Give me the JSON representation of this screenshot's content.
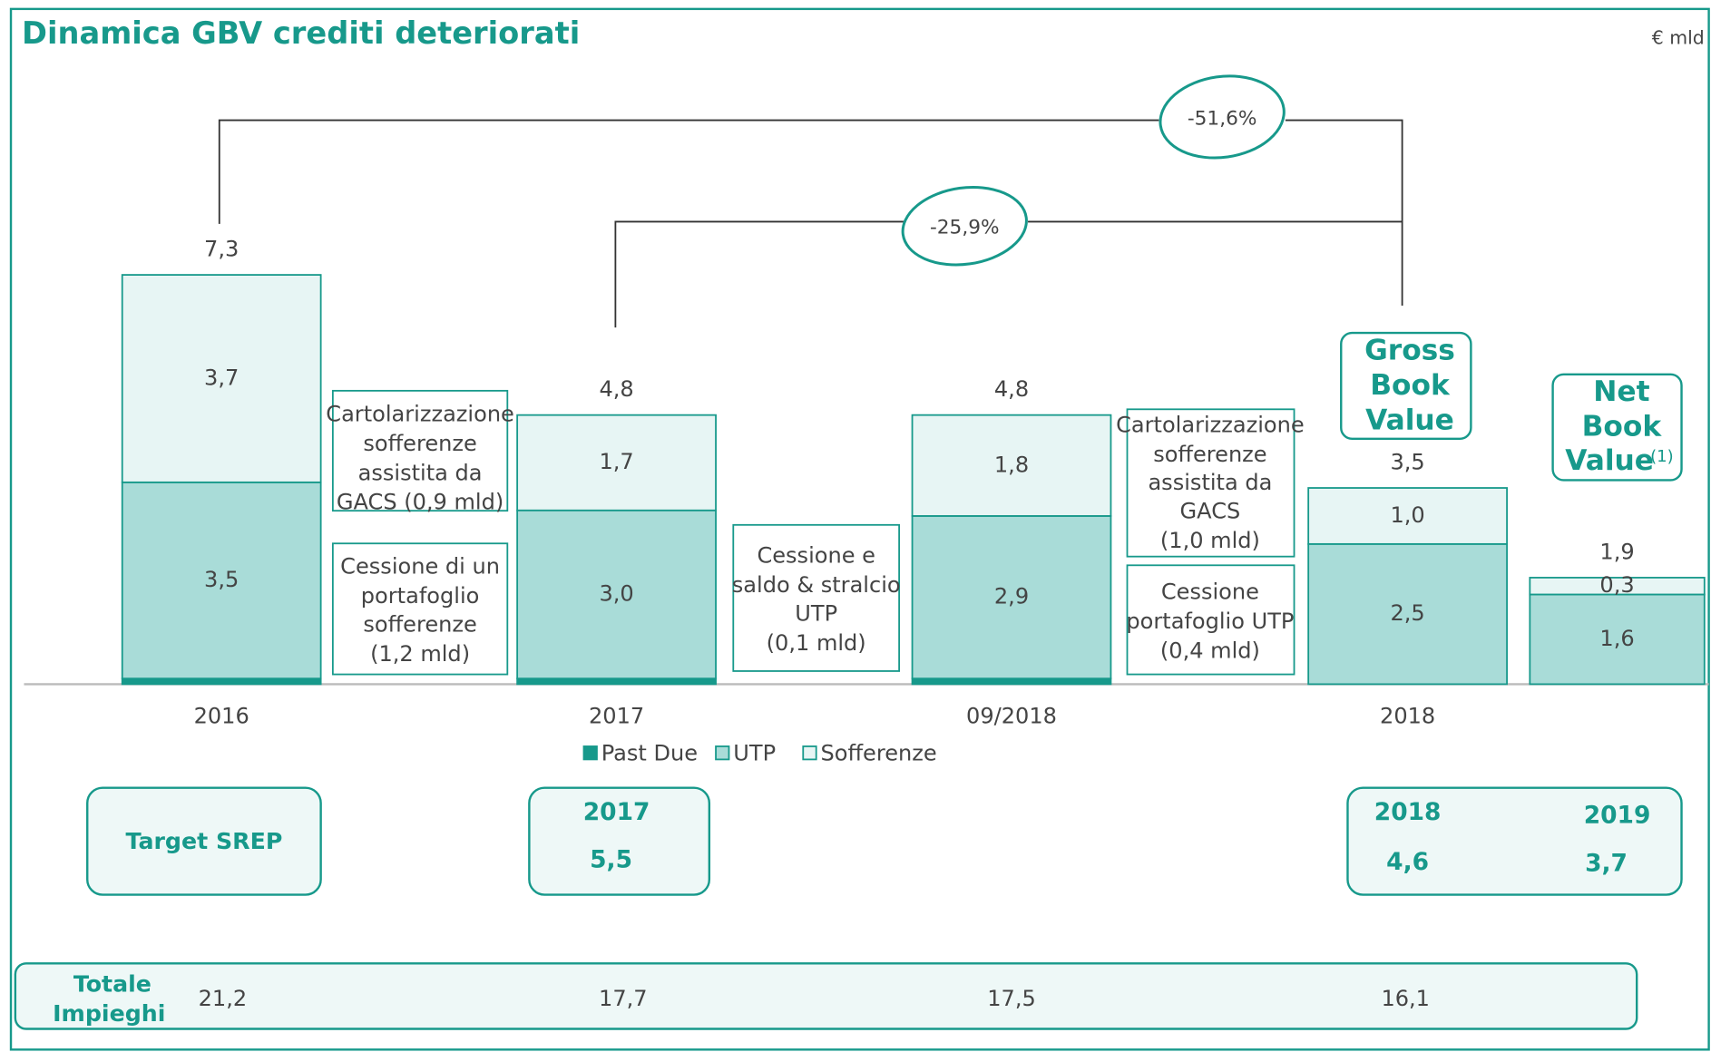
{
  "chart_data": {
    "type": "bar",
    "stacked": true,
    "title": "Dinamica GBV crediti deteriorati",
    "unit_note": "€ mld",
    "categories": [
      "2016",
      "2017",
      "09/2018",
      "2018",
      null
    ],
    "series": [
      {
        "name": "Past Due",
        "color": "#17998b",
        "values": [
          0.1,
          0.1,
          0.1,
          0,
          0
        ]
      },
      {
        "name": "UTP",
        "color": "#a9dcd8",
        "values": [
          3.5,
          3.0,
          2.9,
          2.5,
          1.6
        ],
        "value_labels": [
          "3,5",
          "3,0",
          "2,9",
          "2,5",
          "1,6"
        ]
      },
      {
        "name": "Sofferenze",
        "color": "#e7f5f4",
        "values": [
          3.7,
          1.7,
          1.8,
          1.0,
          0.3
        ],
        "value_labels": [
          "3,7",
          "1,7",
          "1,8",
          "1,0",
          "0,3"
        ]
      }
    ],
    "totals": [
      7.3,
      4.8,
      4.8,
      3.5,
      1.9
    ],
    "total_labels": [
      "7,3",
      "4,8",
      "4,8",
      "3,5",
      "1,9"
    ],
    "annotations": [
      "-51,6%",
      "-25,9%"
    ],
    "operations": [
      [
        "Cartolarizzazione",
        "sofferenze",
        "assistita da",
        "GACS (0,9 mld)"
      ],
      [
        "Cessione di un",
        "portafoglio",
        "sofferenze",
        "(1,2 mld)"
      ],
      [
        "Cessione e",
        "saldo & stralcio",
        "UTP",
        "(0,1 mld)"
      ],
      [
        "Cartolarizzazione",
        "sofferenze",
        "assistita da",
        "GACS",
        "(1,0 mld)"
      ],
      [
        "Cessione",
        "portafoglio UTP",
        "(0,4 mld)"
      ]
    ],
    "gross_label": [
      "Gross",
      "Book",
      "Value"
    ],
    "net_label": [
      "Net",
      "Book",
      "Value"
    ],
    "net_note": "(1)"
  },
  "target_srep": {
    "label": "Target SREP",
    "items": [
      {
        "year": "2017",
        "value": "5,5"
      },
      {
        "year": "2018",
        "value": "4,6"
      },
      {
        "year": "2019",
        "value": "3,7"
      }
    ]
  },
  "totale_impieghi": {
    "label": [
      "Totale",
      "Impieghi"
    ],
    "values": [
      "21,2",
      "17,7",
      "17,5",
      "16,1"
    ]
  }
}
